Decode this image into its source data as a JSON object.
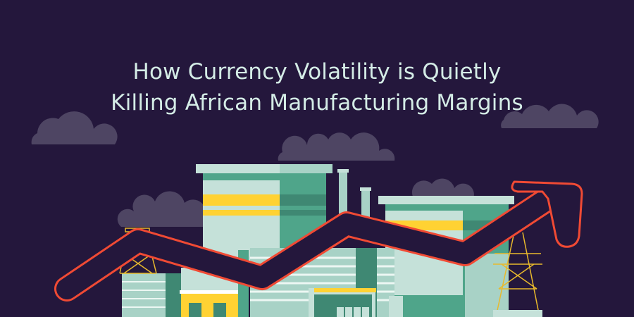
{
  "header": {
    "title_line1": "How Currency Volatility is Quietly",
    "title_line2": "Killing African Manufacturing Margins"
  },
  "colors": {
    "background": "#24173c",
    "title": "#d4ece6",
    "cloud": "#4e4563",
    "building_light": "#c5e1d9",
    "building_mid": "#4fa58a",
    "building_dark": "#3f8873",
    "accent_yellow": "#ffd233",
    "arrow_outline": "#f04a34"
  },
  "illustration": {
    "icons": [
      "cloud-icon",
      "factory-icon",
      "power-pylon-icon",
      "trend-arrow-icon"
    ]
  }
}
